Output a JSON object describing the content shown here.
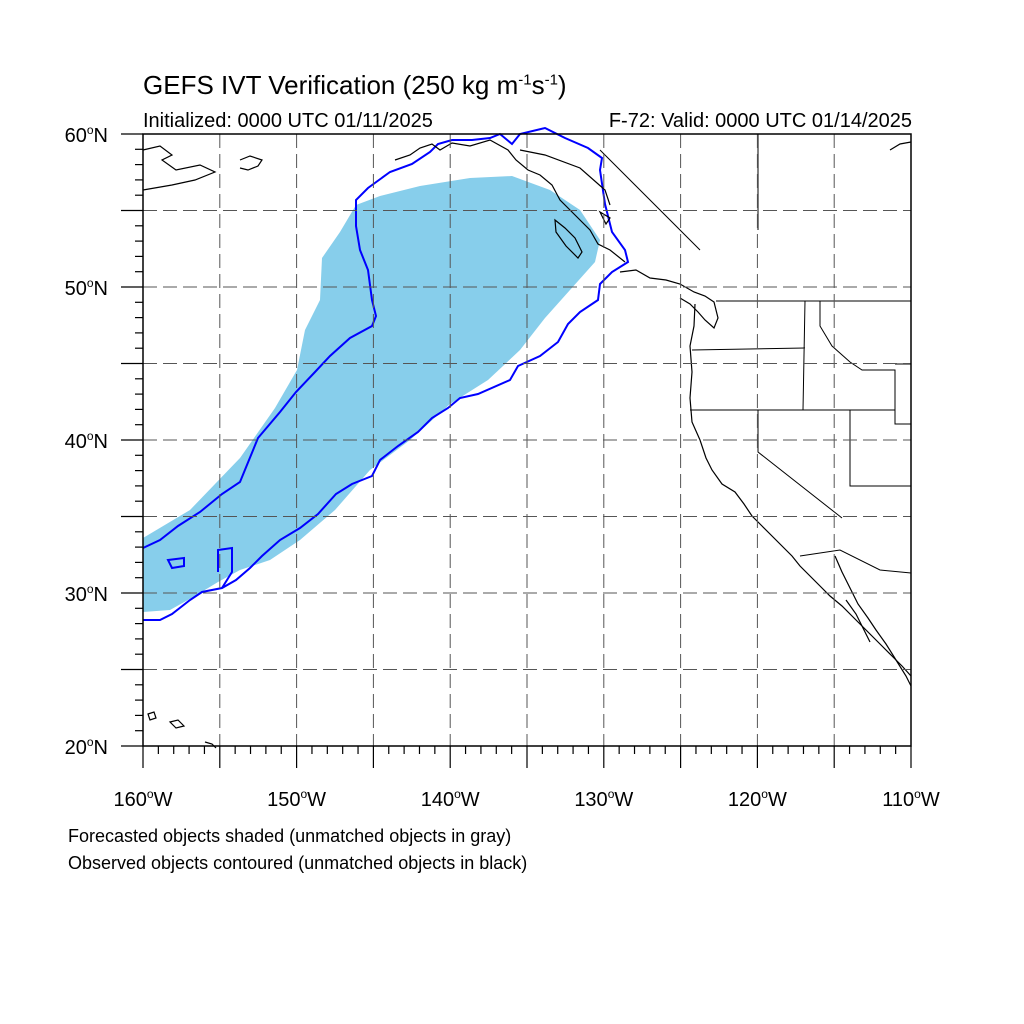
{
  "title": {
    "main": "GEFS IVT Verification (250 kg m",
    "sup1": "-1",
    "mid": "s",
    "sup2": "-1",
    "end": ")"
  },
  "initialized": "Initialized: 0000 UTC 01/11/2025",
  "valid": "F-72: Valid: 0000 UTC 01/14/2025",
  "lat_labels": [
    {
      "value": 60,
      "text": "60",
      "hem": "N"
    },
    {
      "value": 50,
      "text": "50",
      "hem": "N"
    },
    {
      "value": 40,
      "text": "40",
      "hem": "N"
    },
    {
      "value": 30,
      "text": "30",
      "hem": "N"
    },
    {
      "value": 20,
      "text": "20",
      "hem": "N"
    }
  ],
  "lon_labels": [
    {
      "value": -160,
      "text": "160",
      "hem": "W"
    },
    {
      "value": -150,
      "text": "150",
      "hem": "W"
    },
    {
      "value": -140,
      "text": "140",
      "hem": "W"
    },
    {
      "value": -130,
      "text": "130",
      "hem": "W"
    },
    {
      "value": -120,
      "text": "120",
      "hem": "W"
    },
    {
      "value": -110,
      "text": "110",
      "hem": "W"
    }
  ],
  "map_extent": {
    "lon_min": -160,
    "lon_max": -110,
    "lat_min": 20,
    "lat_max": 60
  },
  "grid_step_deg": 5,
  "colors": {
    "forecast_fill": "#87ceeb",
    "observed_contour": "#0000ff",
    "coastline": "#000000",
    "grid": "#555555"
  },
  "notes": {
    "line1": "Forecasted objects shaded (unmatched objects in gray)",
    "line2": "Observed objects contoured (unmatched objects in black)"
  }
}
